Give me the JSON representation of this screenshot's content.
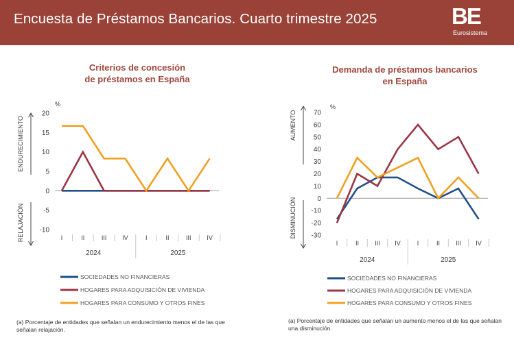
{
  "header": {
    "title": "Encuesta de Préstamos Bancarios. Cuarto trimestre 2025",
    "logo_mark": "BE",
    "logo_text": "Eurosistema",
    "background": "#9a4238"
  },
  "colors": {
    "snf": "#1f4e89",
    "vivienda": "#9b3546",
    "consumo": "#f0a020",
    "title": "#a0473c",
    "zero_line": "#999999"
  },
  "chart_data": [
    {
      "id": "left",
      "type": "line",
      "title_lines": [
        "Criterios de concesión",
        "de préstamos en España"
      ],
      "unit": "%",
      "categories": [
        "I",
        "II",
        "III",
        "IV",
        "I",
        "II",
        "III",
        "IV"
      ],
      "years": [
        "2024",
        "2025"
      ],
      "ylim": [
        -10,
        20
      ],
      "yticks": [
        20,
        15,
        10,
        5,
        0,
        -5,
        -10
      ],
      "upper_label": "ENDURECIMIENTO",
      "lower_label": "RELAJACIÓN",
      "series": [
        {
          "name": "SOCIEDADES NO FINANCIERAS",
          "key": "snf",
          "values": [
            0,
            0,
            0,
            0,
            0,
            0,
            0,
            0
          ]
        },
        {
          "name": "HOGARES PARA ADQUISICIÓN DE VIVIENDA",
          "key": "vivienda",
          "values": [
            0,
            10,
            0,
            0,
            0,
            0,
            0,
            0
          ]
        },
        {
          "name": "HOGARES PARA CONSUMO Y OTROS FINES",
          "key": "consumo",
          "values": [
            16.7,
            16.7,
            8.3,
            8.3,
            0,
            8.3,
            0,
            8.3
          ]
        }
      ],
      "note": "(a) Porcentaje de entidades que señalan un endurecimiento menos el de las que señalan relajación."
    },
    {
      "id": "right",
      "type": "line",
      "title_lines": [
        "Demanda de préstamos bancarios",
        "en España"
      ],
      "unit": "%",
      "categories": [
        "I",
        "II",
        "III",
        "IV",
        "I",
        "II",
        "III",
        "IV"
      ],
      "years": [
        "2024",
        "2025"
      ],
      "ylim": [
        -30,
        70
      ],
      "yticks": [
        70,
        60,
        50,
        40,
        30,
        20,
        10,
        0,
        -10,
        -20,
        -30
      ],
      "upper_label": "AUMENTO",
      "lower_label": "DISMINUCIÓN",
      "series": [
        {
          "name": "SOCIEDADES NO FINANCIERAS",
          "key": "snf",
          "values": [
            -17,
            8,
            17,
            17,
            8,
            0,
            8,
            -17
          ]
        },
        {
          "name": "HOGARES PARA ADQUISICIÓN DE VIVIENDA",
          "key": "vivienda",
          "values": [
            -20,
            20,
            10,
            40,
            60,
            40,
            50,
            20
          ]
        },
        {
          "name": "HOGARES PARA CONSUMO Y OTROS FINES",
          "key": "consumo",
          "values": [
            0,
            33,
            17,
            25,
            33,
            0,
            17,
            0
          ]
        }
      ],
      "note": "(a) Porcentaje de entidades que señalan un aumento menos el de las que señalan una disminución."
    }
  ]
}
